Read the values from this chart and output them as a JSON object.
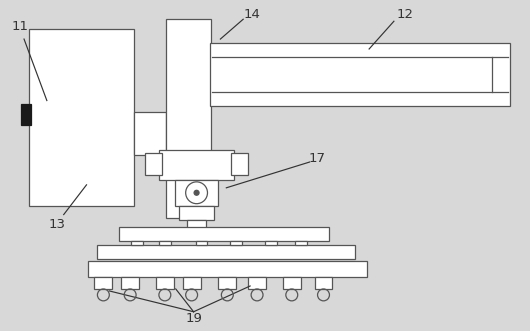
{
  "bg_color": "#d8d8d8",
  "line_color": "#555555",
  "fill_color": "#ffffff",
  "label_color": "#333333",
  "label_fontsize": 9.5
}
